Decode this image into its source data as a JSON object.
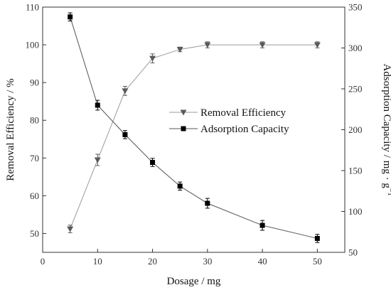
{
  "chart_data": {
    "type": "line",
    "xlabel": "Dosage / mg",
    "ylabel_left": "Removal Efficiency / %",
    "ylabel_right": "Adsorption Capacity / mg · g",
    "ylabel_right_superscript": "−1",
    "xlim": [
      0,
      55
    ],
    "ylim_left": [
      45,
      110
    ],
    "ylim_right": [
      50,
      350
    ],
    "x_ticks": [
      0,
      10,
      20,
      30,
      40,
      50
    ],
    "y_ticks_left": [
      50,
      60,
      70,
      80,
      90,
      100,
      110
    ],
    "y_ticks_right": [
      50,
      100,
      150,
      200,
      250,
      300,
      350
    ],
    "grid": false,
    "legend_position": "center-right",
    "series": [
      {
        "name": "Removal Efficiency",
        "axis": "left",
        "marker": "triangle-down",
        "color": "#5a5a5a",
        "x": [
          5,
          10,
          15,
          20,
          25,
          30,
          40,
          50
        ],
        "values": [
          51.2,
          69.5,
          87.8,
          96.4,
          98.8,
          100.0,
          100.0,
          100.0
        ],
        "errors": [
          1.0,
          1.5,
          1.2,
          1.2,
          0.6,
          0.8,
          0.8,
          0.8
        ]
      },
      {
        "name": "Adsorption Capacity",
        "axis": "right",
        "marker": "square",
        "color": "#000000",
        "x": [
          5,
          10,
          15,
          20,
          25,
          30,
          40,
          50
        ],
        "values": [
          338,
          230,
          194,
          160,
          131,
          110,
          83,
          67
        ],
        "errors": [
          5,
          6,
          5,
          5,
          5,
          6,
          6,
          5
        ]
      }
    ]
  }
}
